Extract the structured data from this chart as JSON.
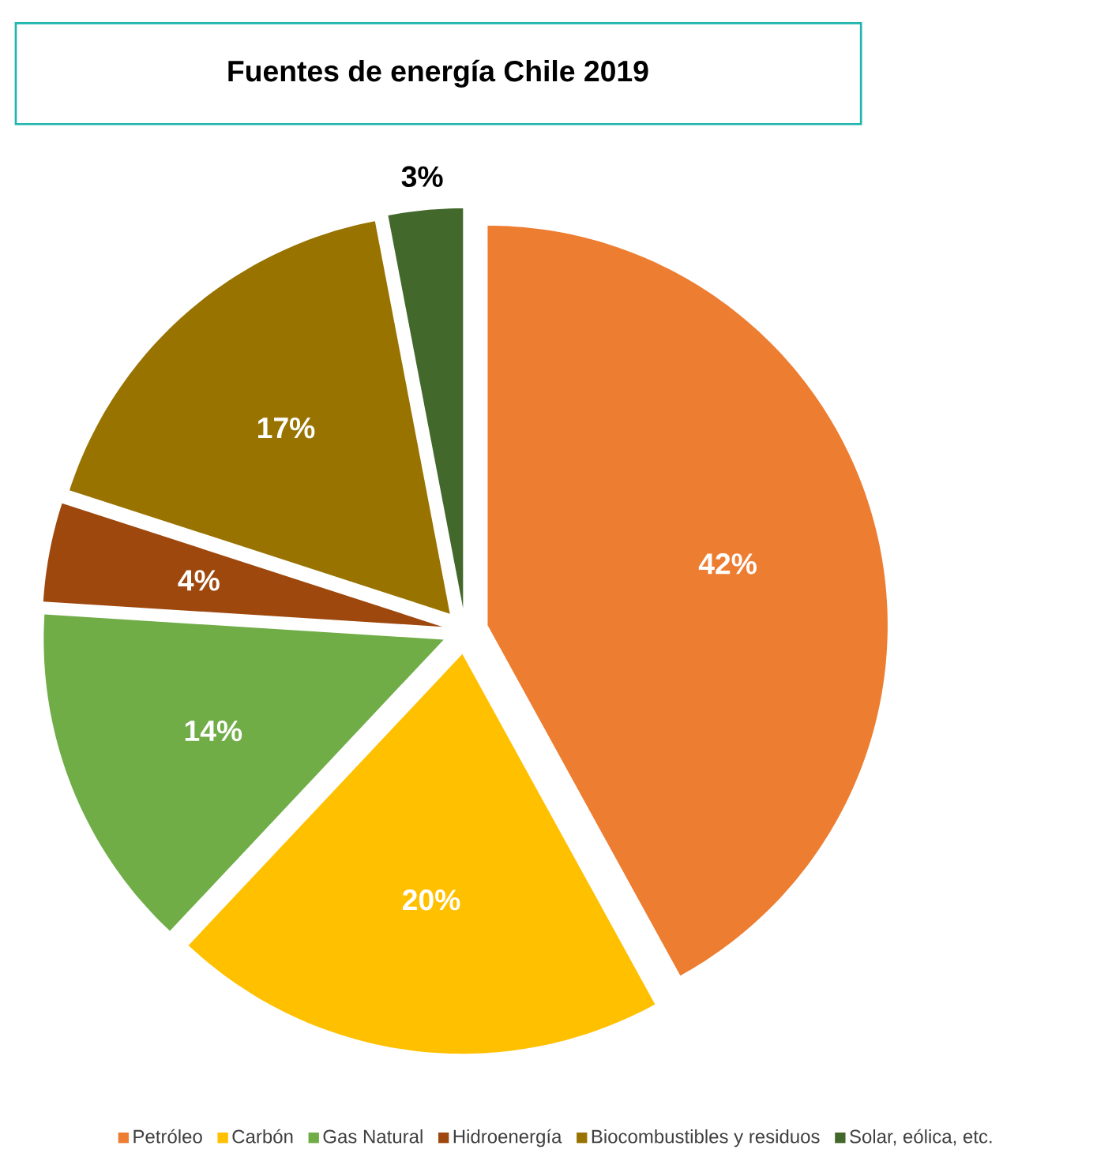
{
  "chart_data": {
    "type": "pie",
    "title": "Fuentes de energía Chile 2019",
    "categories": [
      "Petróleo",
      "Carbón",
      "Gas Natural",
      "Hidroenergía",
      "Biocombustibles y residuos",
      "Solar, eólica, etc."
    ],
    "values": [
      42,
      20,
      14,
      4,
      17,
      3
    ],
    "value_labels": [
      "42%",
      "20%",
      "14%",
      "4%",
      "17%",
      "3%"
    ],
    "colors": [
      "#ed7d31",
      "#ffc000",
      "#70ad47",
      "#9e480e",
      "#997300",
      "#43682b"
    ],
    "legend": "bottom"
  }
}
